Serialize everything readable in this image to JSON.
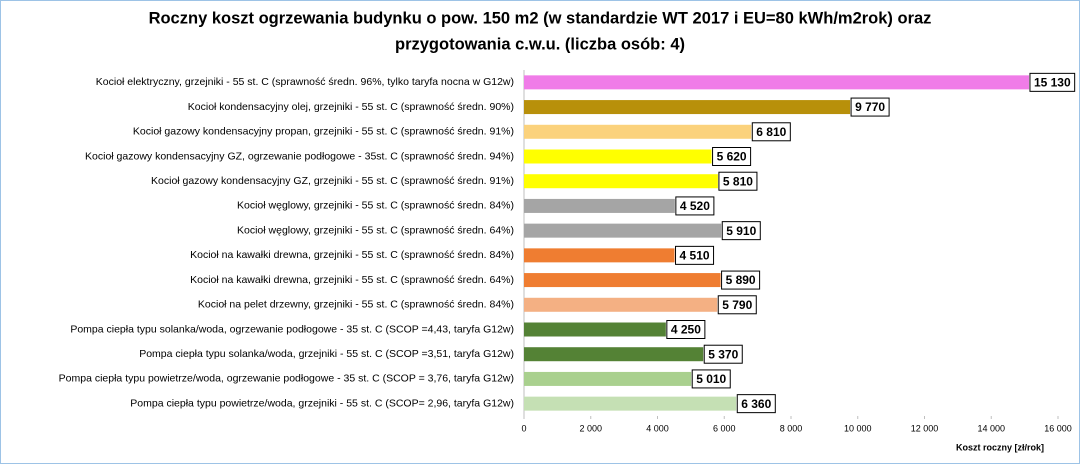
{
  "chart_data": {
    "type": "bar",
    "orientation": "horizontal",
    "title": [
      "Roczny koszt ogrzewania budynku  o pow. 150 m2 (w standardzie WT 2017 i EU=80 kWh/m2rok) oraz",
      "przygotowania c.w.u. (liczba osób: 4)"
    ],
    "x_label": "Koszt roczny [zł/rok]",
    "categories": [
      "Kocioł elektryczny,  grzejniki - 55 st. C (sprawność średn. 96%, tylko taryfa nocna w G12w)",
      "Kocioł  kondensacyjny olej,  grzejniki - 55 st. C  (sprawność średn. 90%)",
      "Kocioł gazowy kondensacyjny propan, grzejniki - 55 st. C  (sprawność średn. 91%)",
      "Kocioł gazowy kondensacyjny GZ, ogrzewanie podłogowe - 35st. C  (sprawność średn. 94%)",
      "Kocioł gazowy kondensacyjny GZ, grzejniki - 55 st. C  (sprawność średn. 91%)",
      "Kocioł węglowy,  grzejniki - 55 st. C  (sprawność średn. 84%)",
      "Kocioł węglowy,  grzejniki - 55 st. C  (sprawność średn. 64%)",
      "Kocioł na kawałki drewna, grzejniki - 55 st. C (sprawność średn. 84%)",
      "Kocioł na kawałki drewna,  grzejniki - 55 st. C  (sprawność średn. 64%)",
      "Kocioł na pelet drzewny, grzejniki - 55 st. C (sprawność średn. 84%)",
      "Pompa ciepła typu solanka/woda, ogrzewanie podłogowe - 35 st. C  (SCOP =4,43, taryfa G12w)",
      "Pompa ciepła typu solanka/woda, grzejniki - 55 st. C (SCOP =3,51, taryfa G12w)",
      "Pompa ciepła typu powietrze/woda, ogrzewanie podłogowe - 35 st. C (SCOP = 3,76, taryfa G12w)",
      "Pompa ciepła typu powietrze/woda, grzejniki - 55 st. C (SCOP= 2,96, taryfa G12w)"
    ],
    "values": [
      15130,
      9770,
      6810,
      5620,
      5810,
      4520,
      5910,
      4510,
      5890,
      5790,
      4250,
      5370,
      5010,
      6360
    ],
    "value_labels": [
      "15 130",
      "9 770",
      "6 810",
      "5 620",
      "5 810",
      "4 520",
      "5 910",
      "4 510",
      "5 890",
      "5 790",
      "4 250",
      "5 370",
      "5 010",
      "6 360"
    ],
    "colors": [
      "#f07ce8",
      "#b8900a",
      "#fbd27c",
      "#ffff00",
      "#ffff00",
      "#a5a5a5",
      "#a5a5a5",
      "#ef7d31",
      "#ef7d31",
      "#f4b083",
      "#548235",
      "#548235",
      "#a9d08e",
      "#c5e0b4"
    ],
    "xlim": [
      0,
      16000
    ],
    "xticks": [
      0,
      {
        "value": 2000,
        "label": "2 000"
      },
      {
        "value": 4000,
        "label": "4 000"
      },
      {
        "value": 6000,
        "label": "6 000"
      },
      {
        "value": 8000,
        "label": "8 000"
      },
      {
        "value": 10000,
        "label": "10 000"
      },
      {
        "value": 12000,
        "label": "12 000"
      },
      {
        "value": 14000,
        "label": "14 000"
      },
      {
        "value": 16000,
        "label": "16 000"
      }
    ]
  }
}
